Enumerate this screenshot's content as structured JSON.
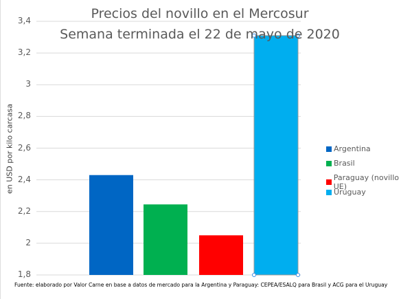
{
  "chart_data": {
    "type": "bar",
    "title": "Precios del novillo en el Mercosur",
    "subtitle": "Semana terminada el 22 de mayo de 2020",
    "ylabel": "en USD por kilo carcasa",
    "xlabel": "",
    "ylim": [
      1.8,
      3.4
    ],
    "yticks": [
      "1,8",
      "2",
      "2,2",
      "2,4",
      "2,6",
      "2,8",
      "3",
      "3,2",
      "3,4"
    ],
    "grid": true,
    "legend_position": "right",
    "series": [
      {
        "name": "Argentina",
        "value": 2.43,
        "color": "#0066C4"
      },
      {
        "name": "Brasil",
        "value": 2.245,
        "color": "#00B050"
      },
      {
        "name": "Paraguay (novillo UE)",
        "value": 2.05,
        "color": "#FF0000"
      },
      {
        "name": "Uruguay",
        "value": 3.31,
        "color": "#00AEEF"
      }
    ],
    "source": "Fuente: elaborado por Valor Carne en base a datos de mercado para la Argentina y Paraguay: CEPEA/ESALQ para Brasil y ACG para el Uruguay"
  }
}
